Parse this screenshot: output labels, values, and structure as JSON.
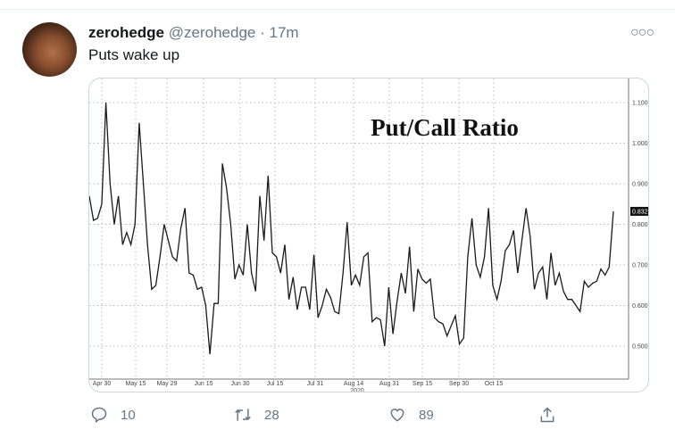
{
  "tweet": {
    "display_name": "zerohedge",
    "handle": "@zerohedge",
    "separator": "·",
    "time": "17m",
    "text": "Puts wake up",
    "more_icon": "more-horizontal-icon"
  },
  "actions": {
    "reply_count": "10",
    "retweet_count": "28",
    "like_count": "89"
  },
  "chart_data": {
    "type": "line",
    "title": "Put/Call Ratio",
    "xlabel": "2020",
    "ylabel": "",
    "x_tick_labels": [
      "Apr 30",
      "May 15",
      "May 29",
      "Jun 15",
      "Jun 30",
      "Jul 15",
      "Jul 31",
      "Aug 14",
      "Aug 31",
      "Sep 15",
      "Sep 30",
      "Oct 15"
    ],
    "y_tick_labels": [
      "1.100",
      "1.000",
      "0.900",
      "0.800",
      "0.700",
      "0.600",
      "0.500"
    ],
    "ylim": [
      0.44,
      1.15
    ],
    "grid": true,
    "last_value_label": "0.832",
    "line_color": "#1a1a1a",
    "values": [
      0.87,
      0.81,
      0.815,
      0.85,
      1.1,
      0.9,
      0.8,
      0.87,
      0.75,
      0.78,
      0.75,
      0.8,
      1.05,
      0.9,
      0.75,
      0.64,
      0.65,
      0.72,
      0.8,
      0.76,
      0.72,
      0.71,
      0.79,
      0.84,
      0.68,
      0.675,
      0.64,
      0.645,
      0.6,
      0.48,
      0.605,
      0.605,
      0.95,
      0.89,
      0.8,
      0.665,
      0.7,
      0.675,
      0.8,
      0.68,
      0.635,
      0.87,
      0.76,
      0.92,
      0.73,
      0.72,
      0.68,
      0.75,
      0.615,
      0.67,
      0.59,
      0.645,
      0.645,
      0.59,
      0.725,
      0.57,
      0.6,
      0.64,
      0.62,
      0.585,
      0.58,
      0.68,
      0.805,
      0.65,
      0.675,
      0.65,
      0.72,
      0.73,
      0.56,
      0.57,
      0.565,
      0.5,
      0.645,
      0.53,
      0.61,
      0.68,
      0.63,
      0.745,
      0.585,
      0.69,
      0.665,
      0.655,
      0.665,
      0.57,
      0.56,
      0.555,
      0.525,
      0.55,
      0.575,
      0.505,
      0.52,
      0.72,
      0.815,
      0.7,
      0.67,
      0.72,
      0.84,
      0.65,
      0.615,
      0.66,
      0.735,
      0.75,
      0.785,
      0.68,
      0.76,
      0.84,
      0.77,
      0.64,
      0.68,
      0.695,
      0.615,
      0.73,
      0.65,
      0.68,
      0.635,
      0.615,
      0.615,
      0.6,
      0.585,
      0.66,
      0.645,
      0.655,
      0.66,
      0.69,
      0.675,
      0.695,
      0.832
    ]
  }
}
